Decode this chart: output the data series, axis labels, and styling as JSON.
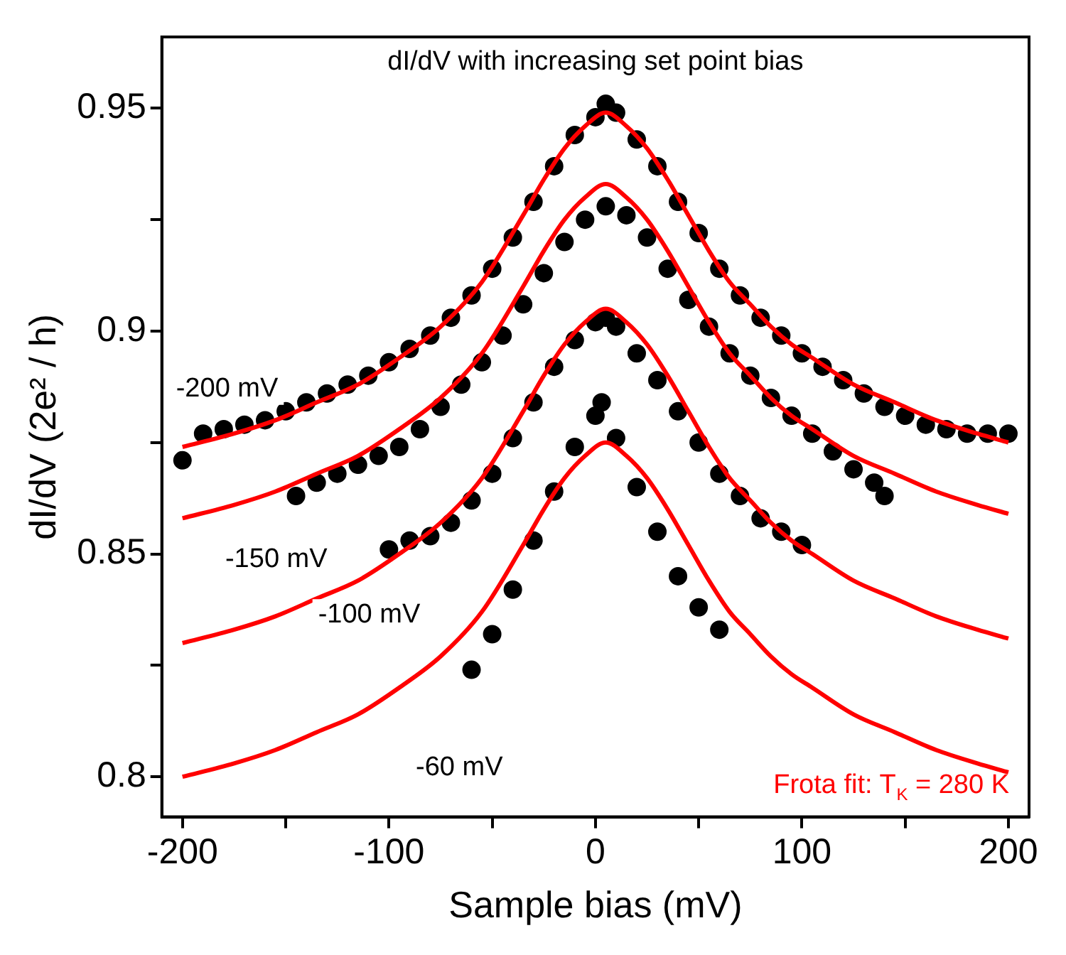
{
  "chart_data": {
    "type": "scatter",
    "title": "dI/dV with increasing set point bias",
    "xlabel": "Sample bias (mV)",
    "ylabel": "dI/dV (2e² / h)",
    "xlim": [
      -210,
      210
    ],
    "ylim": [
      0.791,
      0.966
    ],
    "xticks": [
      -200,
      {
        "value": -150,
        "label": null
      },
      -100,
      {
        "value": -50,
        "label": null
      },
      0,
      {
        "value": 50,
        "label": null
      },
      100,
      {
        "value": 150,
        "label": null
      },
      200
    ],
    "yticks": [
      0.8,
      {
        "value": 0.825,
        "label": null
      },
      0.85,
      {
        "value": 0.875,
        "label": null
      },
      0.9,
      {
        "value": 0.925,
        "label": null
      },
      0.95
    ],
    "grid": false,
    "legend": false,
    "marker": "circle",
    "annotations": [
      "Frota fit: T$_{K}$ = 280 K"
    ],
    "series": [
      {
        "type": "scatter",
        "name": "-200 mV",
        "color": "#000000",
        "x": [
          -200,
          -190,
          -180,
          -170,
          -160,
          -150,
          -140,
          -130,
          -120,
          -110,
          -100,
          -90,
          -80,
          -70,
          -60,
          -50,
          -40,
          -30,
          -20,
          -10,
          0,
          5,
          10,
          20,
          30,
          40,
          50,
          60,
          70,
          80,
          90,
          100,
          110,
          120,
          130,
          140,
          150,
          160,
          170,
          180,
          190,
          200
        ],
        "values": [
          0.871,
          0.877,
          0.878,
          0.879,
          0.88,
          0.882,
          0.884,
          0.886,
          0.888,
          0.89,
          0.893,
          0.896,
          0.899,
          0.903,
          0.908,
          0.914,
          0.921,
          0.929,
          0.937,
          0.944,
          0.948,
          0.951,
          0.949,
          0.943,
          0.937,
          0.929,
          0.922,
          0.914,
          0.908,
          0.903,
          0.899,
          0.895,
          0.892,
          0.889,
          0.886,
          0.883,
          0.881,
          0.879,
          0.878,
          0.877,
          0.877,
          0.877
        ]
      },
      {
        "type": "scatter",
        "name": "-150 mV",
        "color": "#000000",
        "x": [
          -145,
          -135,
          -125,
          -115,
          -105,
          -95,
          -85,
          -75,
          -65,
          -55,
          -45,
          -35,
          -25,
          -15,
          -5,
          5,
          15,
          25,
          35,
          45,
          55,
          65,
          75,
          85,
          95,
          105,
          115,
          125,
          135,
          140
        ],
        "values": [
          0.863,
          0.866,
          0.868,
          0.87,
          0.872,
          0.874,
          0.878,
          0.883,
          0.888,
          0.893,
          0.899,
          0.906,
          0.913,
          0.92,
          0.925,
          0.928,
          0.926,
          0.921,
          0.914,
          0.907,
          0.901,
          0.895,
          0.89,
          0.885,
          0.881,
          0.877,
          0.873,
          0.869,
          0.866,
          0.863
        ]
      },
      {
        "type": "scatter",
        "name": "-100 mV",
        "color": "#000000",
        "x": [
          -100,
          -90,
          -80,
          -70,
          -60,
          -50,
          -40,
          -30,
          -20,
          -10,
          0,
          5,
          10,
          20,
          30,
          40,
          50,
          60,
          70,
          80,
          90,
          100
        ],
        "values": [
          0.851,
          0.853,
          0.854,
          0.857,
          0.862,
          0.868,
          0.876,
          0.884,
          0.892,
          0.898,
          0.902,
          0.903,
          0.901,
          0.895,
          0.889,
          0.882,
          0.875,
          0.868,
          0.863,
          0.858,
          0.855,
          0.852
        ]
      },
      {
        "type": "scatter",
        "name": "-60 mV",
        "color": "#000000",
        "x": [
          -60,
          -50,
          -40,
          -30,
          -20,
          -10,
          0,
          3,
          10,
          20,
          30,
          40,
          50,
          60
        ],
        "values": [
          0.824,
          0.832,
          0.842,
          0.853,
          0.864,
          0.874,
          0.881,
          0.884,
          0.876,
          0.865,
          0.855,
          0.845,
          0.838,
          0.833
        ]
      },
      {
        "type": "line",
        "marker": "none",
        "color": "#ff0000",
        "x": [
          -200,
          -175,
          -155,
          -135,
          -115,
          -95,
          -75,
          -55,
          -35,
          -25,
          -15,
          -5,
          5,
          15,
          25,
          35,
          45,
          55,
          65,
          75,
          85,
          95,
          105,
          125,
          145,
          165,
          185,
          200
        ],
        "values": [
          0.874,
          0.877,
          0.88,
          0.884,
          0.888,
          0.894,
          0.901,
          0.911,
          0.926,
          0.934,
          0.941,
          0.946,
          0.949,
          0.946,
          0.941,
          0.934,
          0.926,
          0.918,
          0.911,
          0.906,
          0.901,
          0.897,
          0.894,
          0.888,
          0.884,
          0.88,
          0.877,
          0.875
        ]
      },
      {
        "type": "line",
        "marker": "none",
        "color": "#ff0000",
        "x": [
          -200,
          -175,
          -155,
          -135,
          -115,
          -95,
          -75,
          -55,
          -35,
          -25,
          -15,
          -5,
          5,
          15,
          25,
          35,
          45,
          55,
          65,
          75,
          85,
          95,
          105,
          125,
          145,
          165,
          185,
          200
        ],
        "values": [
          0.858,
          0.861,
          0.864,
          0.868,
          0.872,
          0.878,
          0.885,
          0.895,
          0.91,
          0.918,
          0.925,
          0.93,
          0.933,
          0.93,
          0.925,
          0.918,
          0.91,
          0.902,
          0.895,
          0.89,
          0.885,
          0.881,
          0.878,
          0.872,
          0.868,
          0.864,
          0.861,
          0.859
        ]
      },
      {
        "type": "line",
        "marker": "none",
        "color": "#ff0000",
        "x": [
          -200,
          -175,
          -155,
          -135,
          -115,
          -95,
          -75,
          -55,
          -35,
          -25,
          -15,
          -5,
          5,
          15,
          25,
          35,
          45,
          55,
          65,
          75,
          85,
          95,
          105,
          125,
          145,
          165,
          185,
          200
        ],
        "values": [
          0.83,
          0.833,
          0.836,
          0.84,
          0.844,
          0.85,
          0.857,
          0.867,
          0.882,
          0.89,
          0.897,
          0.902,
          0.905,
          0.902,
          0.897,
          0.89,
          0.882,
          0.874,
          0.867,
          0.862,
          0.857,
          0.853,
          0.85,
          0.844,
          0.84,
          0.836,
          0.833,
          0.831
        ]
      },
      {
        "type": "line",
        "marker": "none",
        "color": "#ff0000",
        "x": [
          -200,
          -175,
          -155,
          -135,
          -115,
          -95,
          -75,
          -55,
          -35,
          -25,
          -15,
          -5,
          5,
          15,
          25,
          35,
          45,
          55,
          65,
          75,
          85,
          95,
          105,
          125,
          145,
          165,
          185,
          200
        ],
        "values": [
          0.8,
          0.803,
          0.806,
          0.81,
          0.814,
          0.82,
          0.827,
          0.837,
          0.852,
          0.86,
          0.867,
          0.872,
          0.875,
          0.872,
          0.867,
          0.86,
          0.852,
          0.844,
          0.837,
          0.832,
          0.827,
          0.823,
          0.82,
          0.814,
          0.81,
          0.806,
          0.803,
          0.801
        ]
      }
    ]
  }
}
